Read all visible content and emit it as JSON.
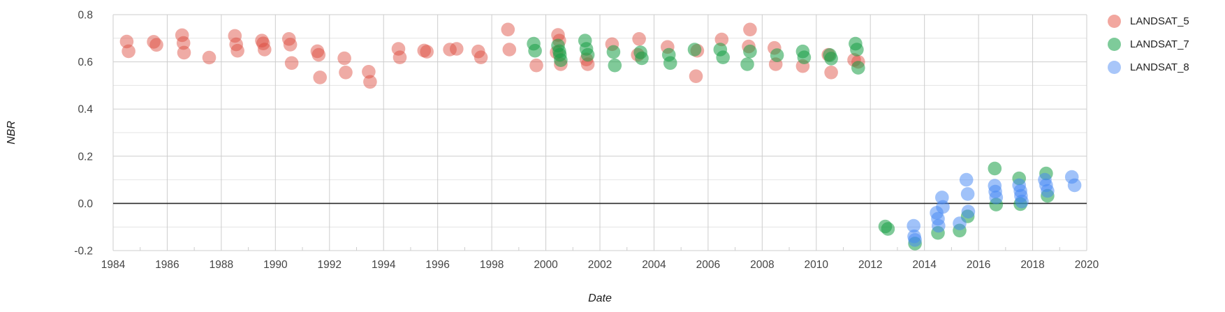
{
  "legend": {
    "items": [
      {
        "label": "LANDSAT_5",
        "color": "#f2a79f"
      },
      {
        "label": "LANDSAT_7",
        "color": "#7ecb9a"
      },
      {
        "label": "LANDSAT_8",
        "color": "#a8c6f9"
      }
    ]
  },
  "axis_titles": {
    "x": "Date",
    "y": "NBR"
  },
  "chart_data": {
    "type": "scatter",
    "title": "",
    "xlabel": "Date",
    "ylabel": "NBR",
    "xlim": [
      1984,
      2020
    ],
    "ylim": [
      -0.2,
      0.8
    ],
    "grid": true,
    "legend_position": "right",
    "x_ticks": [
      1984,
      1986,
      1988,
      1990,
      1992,
      1994,
      1996,
      1998,
      2000,
      2002,
      2004,
      2006,
      2008,
      2010,
      2012,
      2014,
      2016,
      2018,
      2020
    ],
    "x_minor_tick_step": 1,
    "y_ticks": [
      -0.2,
      0.0,
      0.2,
      0.4,
      0.6,
      0.8
    ],
    "y_tick_labels": [
      "-0.2",
      "0.0",
      "0.2",
      "0.4",
      "0.6",
      "0.8"
    ],
    "y_minor_grid_step": 0.1,
    "zero_line": true,
    "zero_line_color": "#2a2a2a",
    "grid_color_major": "#cdcdcd",
    "grid_color_minor": "#e4e4e4",
    "tick_label_color": "#444444",
    "series": [
      {
        "name": "LANDSAT_5",
        "color": "rgba(219,68,55,0.45)",
        "points": [
          [
            1984.5,
            0.686
          ],
          [
            1984.57,
            0.645
          ],
          [
            1985.5,
            0.685
          ],
          [
            1985.6,
            0.672
          ],
          [
            1986.55,
            0.713
          ],
          [
            1986.6,
            0.68
          ],
          [
            1986.62,
            0.639
          ],
          [
            1987.55,
            0.618
          ],
          [
            1988.5,
            0.71
          ],
          [
            1988.55,
            0.674
          ],
          [
            1988.6,
            0.647
          ],
          [
            1989.5,
            0.69
          ],
          [
            1989.55,
            0.678
          ],
          [
            1989.6,
            0.652
          ],
          [
            1990.5,
            0.697
          ],
          [
            1990.55,
            0.673
          ],
          [
            1990.6,
            0.595
          ],
          [
            1991.55,
            0.645
          ],
          [
            1991.6,
            0.63
          ],
          [
            1991.65,
            0.534
          ],
          [
            1992.55,
            0.615
          ],
          [
            1992.6,
            0.555
          ],
          [
            1993.45,
            0.558
          ],
          [
            1993.5,
            0.515
          ],
          [
            1994.55,
            0.655
          ],
          [
            1994.6,
            0.619
          ],
          [
            1995.5,
            0.648
          ],
          [
            1995.6,
            0.643
          ],
          [
            1996.45,
            0.652
          ],
          [
            1996.7,
            0.655
          ],
          [
            1997.5,
            0.644
          ],
          [
            1997.6,
            0.619
          ],
          [
            1998.6,
            0.737
          ],
          [
            1998.65,
            0.652
          ],
          [
            1999.65,
            0.585
          ],
          [
            2000.4,
            0.64
          ],
          [
            2000.45,
            0.714
          ],
          [
            2000.5,
            0.69
          ],
          [
            2000.55,
            0.59
          ],
          [
            2001.5,
            0.61
          ],
          [
            2001.55,
            0.59
          ],
          [
            2002.45,
            0.675
          ],
          [
            2003.4,
            0.63
          ],
          [
            2003.45,
            0.697
          ],
          [
            2004.5,
            0.663
          ],
          [
            2005.55,
            0.539
          ],
          [
            2005.6,
            0.647
          ],
          [
            2006.5,
            0.695
          ],
          [
            2007.5,
            0.665
          ],
          [
            2007.55,
            0.737
          ],
          [
            2008.45,
            0.659
          ],
          [
            2008.5,
            0.59
          ],
          [
            2009.5,
            0.582
          ],
          [
            2010.45,
            0.63
          ],
          [
            2010.55,
            0.555
          ],
          [
            2011.4,
            0.608
          ],
          [
            2011.55,
            0.6
          ]
        ]
      },
      {
        "name": "LANDSAT_7",
        "color": "rgba(24,158,70,0.55)",
        "points": [
          [
            1999.55,
            0.677
          ],
          [
            1999.6,
            0.647
          ],
          [
            2000.45,
            0.669
          ],
          [
            2000.5,
            0.645
          ],
          [
            2000.52,
            0.63
          ],
          [
            2000.55,
            0.607
          ],
          [
            2001.45,
            0.69
          ],
          [
            2001.5,
            0.655
          ],
          [
            2001.55,
            0.63
          ],
          [
            2002.5,
            0.642
          ],
          [
            2002.55,
            0.585
          ],
          [
            2003.5,
            0.64
          ],
          [
            2003.55,
            0.615
          ],
          [
            2004.55,
            0.63
          ],
          [
            2004.6,
            0.595
          ],
          [
            2005.5,
            0.652
          ],
          [
            2006.45,
            0.652
          ],
          [
            2006.55,
            0.619
          ],
          [
            2007.45,
            0.59
          ],
          [
            2007.55,
            0.644
          ],
          [
            2008.55,
            0.628
          ],
          [
            2009.5,
            0.644
          ],
          [
            2009.55,
            0.619
          ],
          [
            2010.5,
            0.629
          ],
          [
            2010.55,
            0.614
          ],
          [
            2011.45,
            0.677
          ],
          [
            2011.5,
            0.652
          ],
          [
            2011.55,
            0.575
          ],
          [
            2012.55,
            -0.098
          ],
          [
            2012.65,
            -0.108
          ],
          [
            2013.65,
            -0.17
          ],
          [
            2014.5,
            -0.125
          ],
          [
            2015.3,
            -0.115
          ],
          [
            2015.6,
            -0.055
          ],
          [
            2016.6,
            0.148
          ],
          [
            2016.65,
            -0.005
          ],
          [
            2017.5,
            0.106
          ],
          [
            2017.55,
            -0.003
          ],
          [
            2018.5,
            0.127
          ],
          [
            2018.55,
            0.032
          ]
        ]
      },
      {
        "name": "LANDSAT_8",
        "color": "rgba(66,133,244,0.5)",
        "points": [
          [
            2013.6,
            -0.095
          ],
          [
            2013.62,
            -0.14
          ],
          [
            2013.65,
            -0.155
          ],
          [
            2014.45,
            -0.04
          ],
          [
            2014.5,
            -0.065
          ],
          [
            2014.52,
            -0.095
          ],
          [
            2014.65,
            0.025
          ],
          [
            2014.68,
            -0.015
          ],
          [
            2015.3,
            -0.085
          ],
          [
            2015.55,
            0.1
          ],
          [
            2015.6,
            0.04
          ],
          [
            2015.62,
            -0.035
          ],
          [
            2016.6,
            0.075
          ],
          [
            2016.62,
            0.05
          ],
          [
            2016.65,
            0.025
          ],
          [
            2017.5,
            0.077
          ],
          [
            2017.55,
            0.053
          ],
          [
            2017.57,
            0.032
          ],
          [
            2017.6,
            0.008
          ],
          [
            2018.45,
            0.1
          ],
          [
            2018.5,
            0.077
          ],
          [
            2018.55,
            0.053
          ],
          [
            2019.45,
            0.112
          ],
          [
            2019.55,
            0.077
          ]
        ]
      }
    ]
  }
}
